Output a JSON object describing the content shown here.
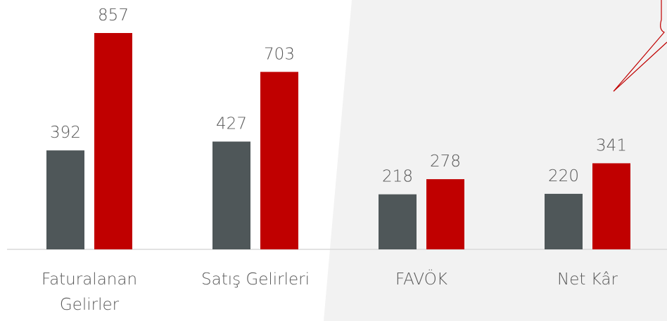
{
  "chart_data": {
    "type": "bar",
    "categories": [
      "Faturalanan Gelirler",
      "Satış Gelirleri",
      "FAVÖK",
      "Net Kâr"
    ],
    "series": [
      {
        "color": "#4f5759",
        "values": [
          392,
          427,
          218,
          220
        ]
      },
      {
        "color": "#c00000",
        "values": [
          857,
          703,
          278,
          341
        ]
      }
    ]
  }
}
